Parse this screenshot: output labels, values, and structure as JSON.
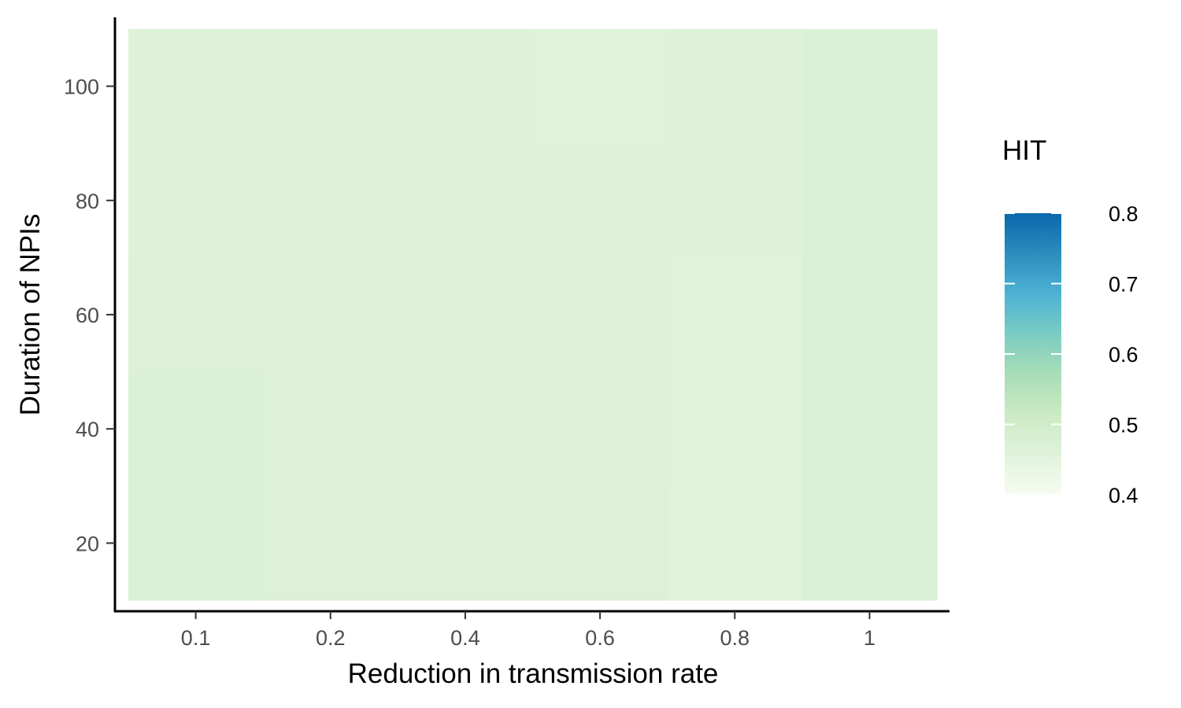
{
  "chart_data": {
    "type": "heatmap",
    "title": "",
    "xlabel": "Reduction in transmission rate",
    "ylabel": "Duration of NPIs",
    "x_categories": [
      "0.1",
      "0.2",
      "0.4",
      "0.6",
      "0.8",
      "1"
    ],
    "y_ticks": [
      "20",
      "40",
      "60",
      "80",
      "100"
    ],
    "y_values": [
      20,
      40,
      60,
      80,
      100
    ],
    "y_range": [
      10,
      110
    ],
    "cells": [
      [
        0.472,
        0.474,
        0.469,
        0.466,
        0.463
      ],
      [
        0.468,
        0.462,
        0.462,
        0.463,
        0.47
      ],
      [
        0.468,
        0.466,
        0.465,
        0.469,
        0.466
      ],
      [
        0.468,
        0.462,
        0.463,
        0.463,
        0.46
      ],
      [
        0.459,
        0.46,
        0.46,
        0.462,
        0.464
      ],
      [
        0.472,
        0.472,
        0.472,
        0.472,
        0.472
      ]
    ],
    "legend": {
      "title": "HIT",
      "labels": [
        "0.8",
        "0.7",
        "0.6",
        "0.5",
        "0.4"
      ],
      "values": [
        0.8,
        0.7,
        0.6,
        0.5,
        0.4
      ],
      "range": [
        0.4,
        0.8
      ],
      "placement": "right"
    },
    "colors": {
      "scale": [
        "#f7fcf0",
        "#e0f3db",
        "#ccebc5",
        "#a8ddb5",
        "#7bccc4",
        "#4eb3d3",
        "#2b8cbe",
        "#0868ac"
      ],
      "axis": "#000000",
      "tick_text": "#4d4d4d"
    },
    "grid": false
  }
}
